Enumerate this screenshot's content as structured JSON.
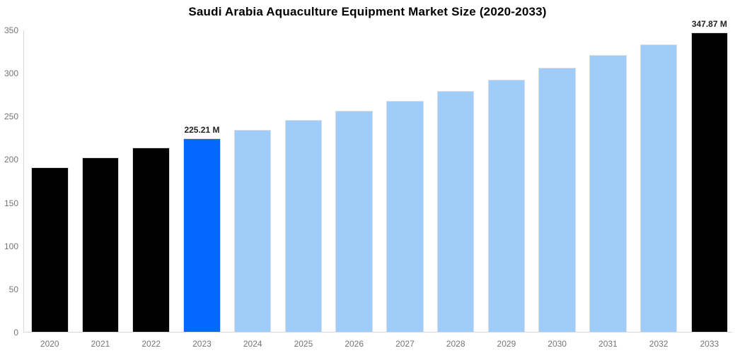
{
  "chart_data": {
    "type": "bar",
    "title": "Saudi Arabia Aquaculture Equipment Market Size (2020-2033)",
    "unit": "M",
    "categories": [
      "2020",
      "2021",
      "2022",
      "2023",
      "2024",
      "2025",
      "2026",
      "2027",
      "2028",
      "2029",
      "2030",
      "2031",
      "2032",
      "2033"
    ],
    "values": [
      191,
      203,
      214,
      225.21,
      235,
      246,
      257,
      268,
      280,
      293,
      307,
      321,
      334,
      347.87
    ],
    "value_labels": {
      "2023": "225.21 M",
      "2033": "347.87 M"
    },
    "bar_roles": [
      "historical",
      "historical",
      "historical",
      "base_year",
      "forecast",
      "forecast",
      "forecast",
      "forecast",
      "forecast",
      "forecast",
      "forecast",
      "forecast",
      "forecast",
      "final_year"
    ],
    "colors": {
      "historical": "#000000",
      "base_year": "#0667fe",
      "forecast": "#a0ccfa",
      "final_year": "#000000",
      "axis_line": "#d8d8d8",
      "tick_label": "#757575",
      "value_label": "#222222",
      "title_text": "#000000"
    },
    "y_axis": {
      "min": 0,
      "max": 350,
      "tick_step": 50,
      "tick_labels": [
        "350",
        "300",
        "250",
        "200",
        "150",
        "100",
        "50",
        "0"
      ]
    },
    "xlabel": "",
    "ylabel": "",
    "grid": false,
    "legend": false
  }
}
